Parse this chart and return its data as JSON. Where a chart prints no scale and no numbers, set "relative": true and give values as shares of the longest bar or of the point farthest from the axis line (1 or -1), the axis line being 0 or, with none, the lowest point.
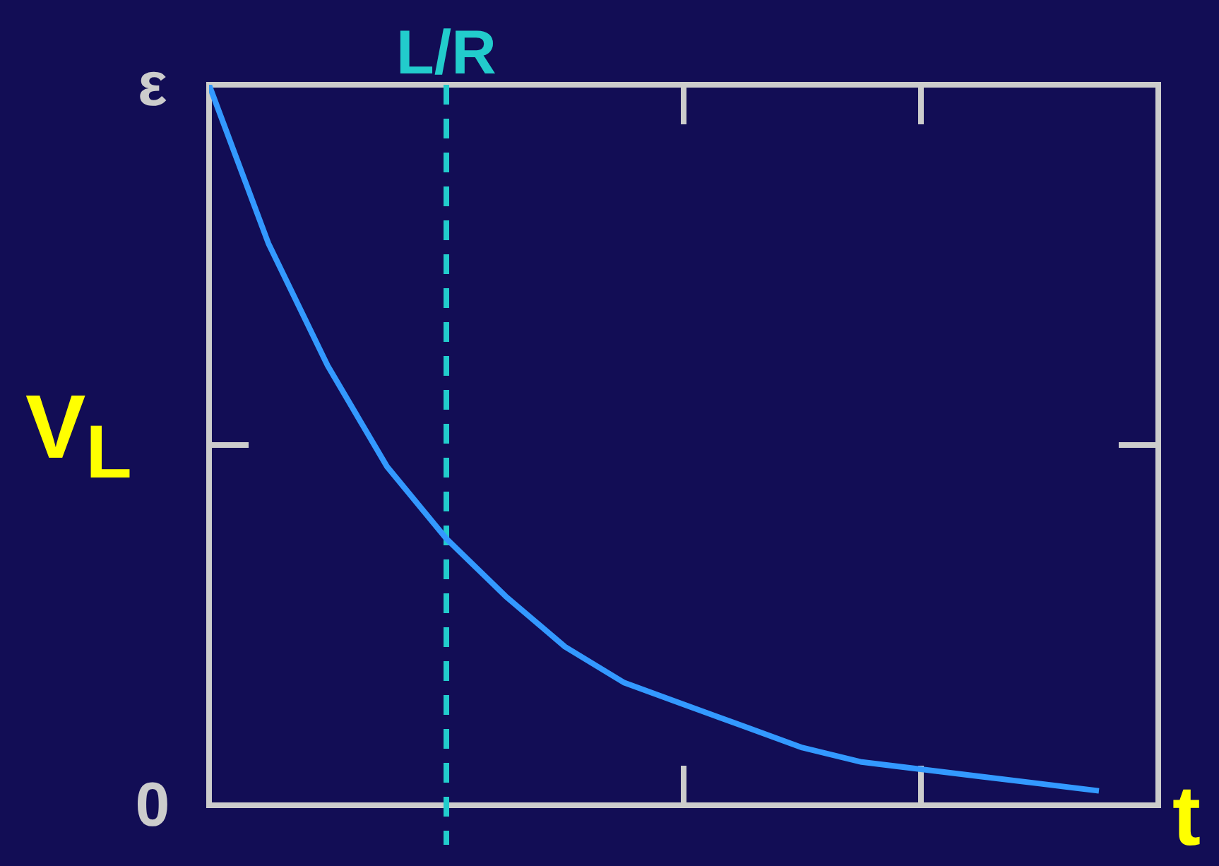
{
  "chart_data": {
    "type": "line",
    "xlabel": "t",
    "ylabel": "V$_{L}$",
    "relative": true,
    "categories": [
      null,
      null,
      null,
      null,
      null,
      null,
      null,
      null,
      null,
      null,
      null,
      null,
      null,
      null,
      null,
      null,
      null
    ],
    "series": [
      {
        "color": "#3399ff",
        "values": [
          1,
          0.78,
          0.61,
          0.47,
          0.37,
          0.29,
          0.22,
          0.17,
          0.14,
          0.11,
          0.08,
          0.06,
          0.05,
          0.04,
          0.03,
          0.02,
          null
        ]
      }
    ],
    "annotations": [
      "ε",
      "0",
      "L/R"
    ],
    "marker": "none",
    "line_style": "solid"
  }
}
